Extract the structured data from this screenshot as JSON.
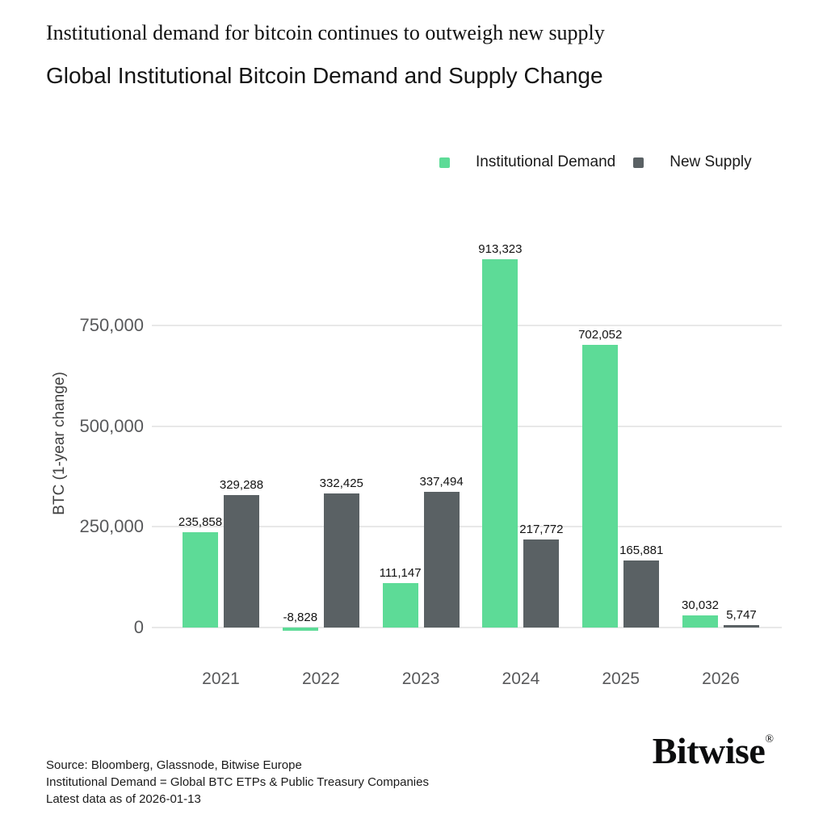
{
  "header": {
    "title": "Institutional demand for bitcoin continues to outweigh new supply",
    "subtitle": "Global Institutional Bitcoin Demand and Supply Change"
  },
  "legend": {
    "items": [
      {
        "label": "Institutional Demand",
        "color": "#5ddb97"
      },
      {
        "label": "New Supply",
        "color": "#5a6164"
      }
    ]
  },
  "chart_data": {
    "type": "bar",
    "title": "Global Institutional Bitcoin Demand and Supply Change",
    "categories": [
      "2021",
      "2022",
      "2023",
      "2024",
      "2025",
      "2026"
    ],
    "series": [
      {
        "name": "Institutional Demand",
        "color": "#5ddb97",
        "values": [
          235858,
          -8828,
          111147,
          913323,
          702052,
          30032
        ],
        "labels": [
          "235,858",
          "-8,828",
          "111,147",
          "913,323",
          "702,052",
          "30,032"
        ]
      },
      {
        "name": "New Supply",
        "color": "#5a6164",
        "values": [
          329288,
          332425,
          337494,
          217772,
          165881,
          5747
        ],
        "labels": [
          "329,288",
          "332,425",
          "337,494",
          "217,772",
          "165,881",
          "5,747"
        ]
      }
    ],
    "xlabel": "",
    "ylabel": "BTC (1-year change)",
    "yticks": [
      0,
      250000,
      500000,
      750000
    ],
    "ytick_labels": [
      "0",
      "250,000",
      "500,000",
      "750,000"
    ],
    "ylim": [
      -25000,
      950000
    ],
    "grid": true,
    "legend_position": "top-right",
    "grid_color": "#e8e8e8"
  },
  "footer": {
    "source": "Source: Bloomberg, Glassnode, Bitwise Europe",
    "definition": "Institutional Demand = Global BTC ETPs & Public Treasury Companies",
    "as_of": "Latest data as of 2026-01-13"
  },
  "logo": {
    "text": "Bitwise",
    "mark": "®"
  }
}
